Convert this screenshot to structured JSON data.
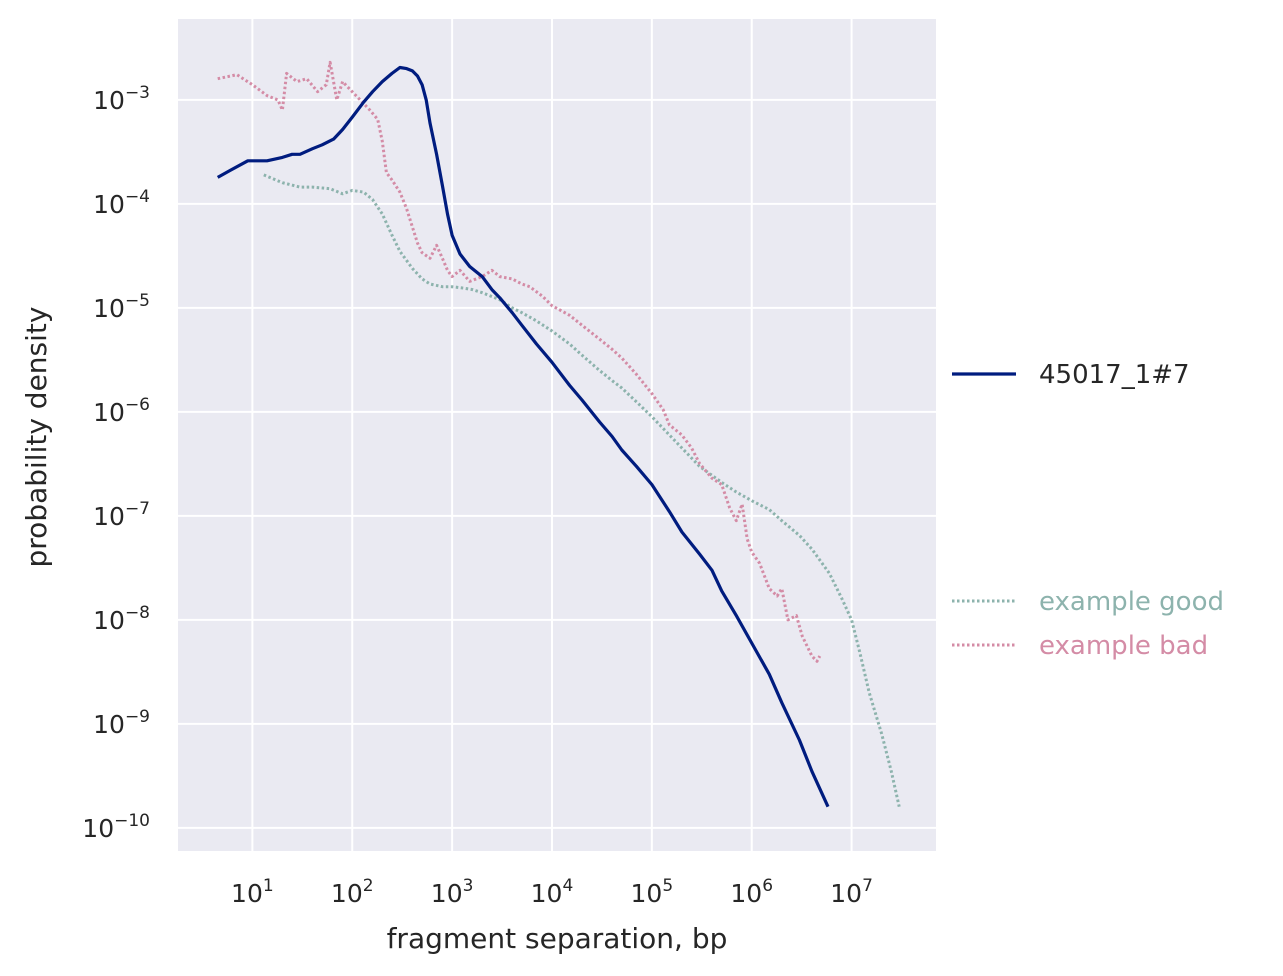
{
  "chart_data": {
    "type": "line",
    "title": "",
    "xlabel": "fragment separation, bp",
    "ylabel": "probability density",
    "xscale": "log",
    "yscale": "log",
    "xlim": [
      1.8,
      70000000
    ],
    "ylim": [
      6e-11,
      0.006
    ],
    "xticks": [
      {
        "value": 10,
        "base": "10",
        "exp": "1"
      },
      {
        "value": 100,
        "base": "10",
        "exp": "2"
      },
      {
        "value": 1000,
        "base": "10",
        "exp": "3"
      },
      {
        "value": 10000,
        "base": "10",
        "exp": "4"
      },
      {
        "value": 100000,
        "base": "10",
        "exp": "5"
      },
      {
        "value": 1000000,
        "base": "10",
        "exp": "6"
      },
      {
        "value": 10000000,
        "base": "10",
        "exp": "7"
      }
    ],
    "yticks": [
      {
        "value": 0.001,
        "base": "10",
        "exp": "−3"
      },
      {
        "value": 0.0001,
        "base": "10",
        "exp": "−4"
      },
      {
        "value": 1e-05,
        "base": "10",
        "exp": "−5"
      },
      {
        "value": 1e-06,
        "base": "10",
        "exp": "−6"
      },
      {
        "value": 1e-07,
        "base": "10",
        "exp": "−7"
      },
      {
        "value": 1e-08,
        "base": "10",
        "exp": "−8"
      },
      {
        "value": 1e-09,
        "base": "10",
        "exp": "−9"
      },
      {
        "value": 1e-10,
        "base": "10",
        "exp": "−10"
      }
    ],
    "grid": true,
    "legend_position": "right",
    "background": "#eaeaf2",
    "series": [
      {
        "name": "45017_1#7",
        "color": "#001c7f",
        "style": "solid",
        "points": [
          [
            4.5,
            0.00018
          ],
          [
            6,
            0.00021
          ],
          [
            9,
            0.00026
          ],
          [
            14,
            0.00026
          ],
          [
            20,
            0.00028
          ],
          [
            25,
            0.0003
          ],
          [
            30,
            0.0003
          ],
          [
            40,
            0.00034
          ],
          [
            50,
            0.00037
          ],
          [
            65,
            0.00042
          ],
          [
            80,
            0.00052
          ],
          [
            100,
            0.00068
          ],
          [
            130,
            0.00095
          ],
          [
            160,
            0.0012
          ],
          [
            200,
            0.0015
          ],
          [
            250,
            0.0018
          ],
          [
            300,
            0.00205
          ],
          [
            350,
            0.002
          ],
          [
            400,
            0.0019
          ],
          [
            450,
            0.0017
          ],
          [
            500,
            0.0014
          ],
          [
            550,
            0.001
          ],
          [
            600,
            0.0006
          ],
          [
            700,
            0.0003
          ],
          [
            800,
            0.00015
          ],
          [
            900,
            8e-05
          ],
          [
            1000,
            5e-05
          ],
          [
            1200,
            3.3e-05
          ],
          [
            1500,
            2.5e-05
          ],
          [
            2000,
            2e-05
          ],
          [
            2500,
            1.5e-05
          ],
          [
            3000,
            1.25e-05
          ],
          [
            4000,
            9e-06
          ],
          [
            5000,
            6.8e-06
          ],
          [
            7000,
            4.5e-06
          ],
          [
            10000,
            3e-06
          ],
          [
            15000,
            1.8e-06
          ],
          [
            20000,
            1.3e-06
          ],
          [
            30000,
            8e-07
          ],
          [
            40000,
            5.8e-07
          ],
          [
            50000,
            4.3e-07
          ],
          [
            70000,
            3e-07
          ],
          [
            100000,
            2e-07
          ],
          [
            150000,
            1.1e-07
          ],
          [
            200000,
            7e-08
          ],
          [
            300000,
            4.3e-08
          ],
          [
            400000,
            3e-08
          ],
          [
            500000,
            1.9e-08
          ],
          [
            700000,
            1.1e-08
          ],
          [
            1000000,
            6e-09
          ],
          [
            1500000,
            3e-09
          ],
          [
            2000000,
            1.6e-09
          ],
          [
            3000000,
            7e-10
          ],
          [
            4000000,
            3.5e-10
          ],
          [
            5800000,
            1.6e-10
          ]
        ]
      },
      {
        "name": "example good",
        "color": "#8db3ad",
        "style": "dotted",
        "points": [
          [
            13,
            0.00019
          ],
          [
            20,
            0.00016
          ],
          [
            30,
            0.000145
          ],
          [
            40,
            0.000145
          ],
          [
            60,
            0.00014
          ],
          [
            80,
            0.000125
          ],
          [
            100,
            0.000135
          ],
          [
            130,
            0.00013
          ],
          [
            160,
            0.00011
          ],
          [
            200,
            8e-05
          ],
          [
            250,
            5e-05
          ],
          [
            300,
            3.5e-05
          ],
          [
            400,
            2.4e-05
          ],
          [
            500,
            1.9e-05
          ],
          [
            600,
            1.7e-05
          ],
          [
            800,
            1.6e-05
          ],
          [
            1000,
            1.6e-05
          ],
          [
            1300,
            1.55e-05
          ],
          [
            1600,
            1.5e-05
          ],
          [
            2000,
            1.4e-05
          ],
          [
            3000,
            1.2e-05
          ],
          [
            4000,
            1e-05
          ],
          [
            5000,
            9e-06
          ],
          [
            7000,
            7.5e-06
          ],
          [
            10000,
            6e-06
          ],
          [
            15000,
            4.5e-06
          ],
          [
            20000,
            3.5e-06
          ],
          [
            30000,
            2.5e-06
          ],
          [
            40000,
            2e-06
          ],
          [
            50000,
            1.7e-06
          ],
          [
            70000,
            1.25e-06
          ],
          [
            100000,
            9e-07
          ],
          [
            150000,
            6e-07
          ],
          [
            200000,
            4.5e-07
          ],
          [
            300000,
            3e-07
          ],
          [
            500000,
            2.1e-07
          ],
          [
            700000,
            1.7e-07
          ],
          [
            1000000,
            1.4e-07
          ],
          [
            1500000,
            1.15e-07
          ],
          [
            2000000,
            9e-08
          ],
          [
            3000000,
            6.5e-08
          ],
          [
            4000000,
            4.8e-08
          ],
          [
            6000000,
            2.8e-08
          ],
          [
            8000000,
            1.6e-08
          ],
          [
            10000000,
            1e-08
          ],
          [
            12000000,
            5e-09
          ],
          [
            15000000,
            2e-09
          ],
          [
            20000000,
            8e-10
          ],
          [
            25000000,
            3.5e-10
          ],
          [
            30000000,
            1.6e-10
          ]
        ]
      },
      {
        "name": "example bad",
        "color": "#d48ca6",
        "style": "dotted",
        "points": [
          [
            4.5,
            0.0016
          ],
          [
            7,
            0.00175
          ],
          [
            10,
            0.0014
          ],
          [
            14,
            0.0011
          ],
          [
            18,
            0.001
          ],
          [
            20,
            0.0008
          ],
          [
            22,
            0.0018
          ],
          [
            28,
            0.0015
          ],
          [
            35,
            0.0016
          ],
          [
            45,
            0.0012
          ],
          [
            55,
            0.0014
          ],
          [
            60,
            0.0023
          ],
          [
            70,
            0.001
          ],
          [
            80,
            0.0015
          ],
          [
            100,
            0.0012
          ],
          [
            120,
            0.001
          ],
          [
            150,
            0.0008
          ],
          [
            180,
            0.00065
          ],
          [
            200,
            0.0004
          ],
          [
            220,
            0.0002
          ],
          [
            250,
            0.00017
          ],
          [
            300,
            0.00013
          ],
          [
            350,
            9e-05
          ],
          [
            400,
            6e-05
          ],
          [
            450,
            4.2e-05
          ],
          [
            500,
            3.4e-05
          ],
          [
            600,
            3e-05
          ],
          [
            700,
            4e-05
          ],
          [
            800,
            3e-05
          ],
          [
            900,
            2.3e-05
          ],
          [
            1000,
            2e-05
          ],
          [
            1200,
            2.3e-05
          ],
          [
            1500,
            1.8e-05
          ],
          [
            2000,
            2e-05
          ],
          [
            2500,
            2.3e-05
          ],
          [
            3000,
            2e-05
          ],
          [
            4000,
            1.9e-05
          ],
          [
            5000,
            1.7e-05
          ],
          [
            6000,
            1.6e-05
          ],
          [
            8000,
            1.3e-05
          ],
          [
            10000,
            1.05e-05
          ],
          [
            15000,
            8.5e-06
          ],
          [
            20000,
            6.8e-06
          ],
          [
            30000,
            5e-06
          ],
          [
            40000,
            4e-06
          ],
          [
            50000,
            3.3e-06
          ],
          [
            70000,
            2.3e-06
          ],
          [
            100000,
            1.5e-06
          ],
          [
            130000,
            1.05e-06
          ],
          [
            150000,
            7.5e-07
          ],
          [
            200000,
            6e-07
          ],
          [
            250000,
            4.5e-07
          ],
          [
            300000,
            3.2e-07
          ],
          [
            400000,
            2.3e-07
          ],
          [
            500000,
            2e-07
          ],
          [
            600000,
            1.2e-07
          ],
          [
            700000,
            9e-08
          ],
          [
            800000,
            1.3e-07
          ],
          [
            900000,
            6e-08
          ],
          [
            1000000,
            4.5e-08
          ],
          [
            1200000,
            3.5e-08
          ],
          [
            1500000,
            2e-08
          ],
          [
            1800000,
            1.7e-08
          ],
          [
            2000000,
            2e-08
          ],
          [
            2300000,
            1e-08
          ],
          [
            2800000,
            1.1e-08
          ],
          [
            3200000,
            7e-09
          ],
          [
            4000000,
            4.5e-09
          ],
          [
            4500000,
            4e-09
          ],
          [
            4800000,
            4.5e-09
          ]
        ]
      }
    ]
  }
}
